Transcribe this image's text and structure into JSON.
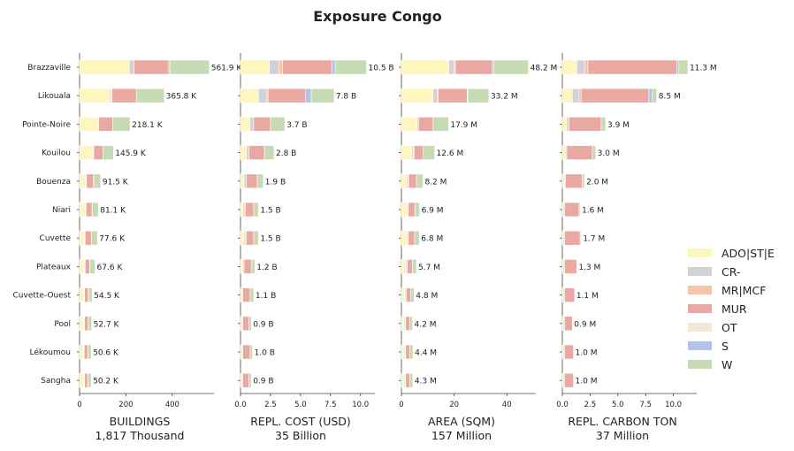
{
  "chart_data": {
    "type": "bar",
    "orientation": "horizontal",
    "stacked": true,
    "title": "Exposure Congo",
    "categories": [
      "Brazzaville",
      "Likouala",
      "Pointe-Noire",
      "Kouilou",
      "Bouenza",
      "Niari",
      "Cuvette",
      "Plateaux",
      "Cuvette-Ouest",
      "Pool",
      "Lékoumou",
      "Sangha"
    ],
    "legend": {
      "position": "right",
      "entries": [
        {
          "name": "ADO|ST|E",
          "color": "#fff5bf"
        },
        {
          "name": "CR-",
          "color": "#cfd2d6"
        },
        {
          "name": "MR|MCF",
          "color": "#f6c4a6"
        },
        {
          "name": "MUR",
          "color": "#e9a8a2"
        },
        {
          "name": "OT",
          "color": "#f3e8da"
        },
        {
          "name": "S",
          "color": "#b2c3e4"
        },
        {
          "name": "W",
          "color": "#c6dbb4"
        }
      ]
    },
    "panels": [
      {
        "xlabel": "BUILDINGS",
        "total_label": "1,817 Thousand",
        "xlim": [
          0,
          580
        ],
        "ticks": [
          0,
          200,
          400
        ],
        "tick_labels": [
          "0",
          "200",
          "400"
        ],
        "totals": [
          "561.9 K",
          "365.8 K",
          "218.1 K",
          "145.9 K",
          "91.5 K",
          "81.1 K",
          "77.6 K",
          "67.6 K",
          "54.5 K",
          "52.7 K",
          "50.6 K",
          "50.2 K"
        ],
        "values": [
          [
            215,
            20,
            0,
            150,
            0,
            5,
            170
          ],
          [
            130,
            5,
            5,
            105,
            0,
            0,
            120
          ],
          [
            80,
            3,
            0,
            60,
            0,
            0,
            75
          ],
          [
            55,
            3,
            3,
            40,
            0,
            0,
            45
          ],
          [
            25,
            3,
            2,
            30,
            0,
            1,
            30
          ],
          [
            25,
            2,
            1,
            26,
            0,
            1,
            26
          ],
          [
            20,
            2,
            2,
            27,
            0,
            1,
            25
          ],
          [
            20,
            2,
            2,
            20,
            0,
            1,
            22
          ],
          [
            18,
            2,
            2,
            16,
            0,
            1,
            15
          ],
          [
            17,
            2,
            3,
            15,
            0,
            1,
            14
          ],
          [
            16,
            2,
            2,
            15,
            0,
            1,
            14
          ],
          [
            18,
            2,
            2,
            13,
            0,
            1,
            14
          ]
        ]
      },
      {
        "xlabel": "REPL. COST (USD)",
        "total_label": "35 Billion",
        "xlim": [
          0,
          11.2
        ],
        "ticks": [
          0,
          2.5,
          5,
          7.5,
          10
        ],
        "tick_labels": [
          "0.0",
          "2.5",
          "5.0",
          "7.5",
          "10.0"
        ],
        "totals": [
          "10.5 B",
          "7.8 B",
          "3.7 B",
          "2.8 B",
          "1.9 B",
          "1.5 B",
          "1.5 B",
          "1.2 B",
          "1.1 B",
          "0.9 B",
          "1.0 B",
          "0.9 B"
        ],
        "values": [
          [
            2.4,
            0.8,
            0.3,
            4.1,
            0,
            0.3,
            2.6
          ],
          [
            1.5,
            0.7,
            0.1,
            3.1,
            0,
            0.5,
            1.9
          ],
          [
            0.8,
            0.3,
            0,
            1.4,
            0,
            0,
            1.2
          ],
          [
            0.5,
            0.2,
            0,
            1.3,
            0,
            0,
            0.8
          ],
          [
            0.3,
            0.2,
            0,
            0.9,
            0,
            0,
            0.5
          ],
          [
            0.2,
            0.1,
            0.1,
            0.7,
            0,
            0,
            0.4
          ],
          [
            0.3,
            0.1,
            0.1,
            0.6,
            0,
            0,
            0.4
          ],
          [
            0.2,
            0.1,
            0,
            0.6,
            0,
            0,
            0.3
          ],
          [
            0.1,
            0.1,
            0,
            0.6,
            0,
            0,
            0.3
          ],
          [
            0.1,
            0.1,
            0,
            0.5,
            0,
            0,
            0.2
          ],
          [
            0.1,
            0.1,
            0,
            0.6,
            0,
            0,
            0.2
          ],
          [
            0.1,
            0.1,
            0,
            0.5,
            0,
            0,
            0.2
          ]
        ]
      },
      {
        "xlabel": "AREA (SQM)",
        "total_label": "157 Million",
        "xlim": [
          0,
          51
        ],
        "ticks": [
          0,
          20,
          40
        ],
        "tick_labels": [
          "0",
          "20",
          "40"
        ],
        "totals": [
          "48.2 M",
          "33.2 M",
          "17.9 M",
          "12.6 M",
          "8.2 M",
          "6.9 M",
          "6.8 M",
          "5.7 M",
          "4.8 M",
          "4.2 M",
          "4.4 M",
          "4.3 M"
        ],
        "values": [
          [
            18,
            2,
            0.5,
            14,
            0,
            0.5,
            13.2
          ],
          [
            12,
            1.5,
            0.5,
            11,
            0,
            0.2,
            8
          ],
          [
            6,
            0.5,
            0,
            5.5,
            0,
            0,
            5.9
          ],
          [
            4,
            0.5,
            0.3,
            3.5,
            0,
            0,
            4.3
          ],
          [
            2,
            0.5,
            0.2,
            3,
            0,
            0,
            2.5
          ],
          [
            2,
            0.4,
            0.2,
            2.5,
            0,
            0,
            1.8
          ],
          [
            2,
            0.4,
            0.2,
            2.4,
            0,
            0,
            1.8
          ],
          [
            1.5,
            0.5,
            0.2,
            2,
            0,
            0,
            1.5
          ],
          [
            1.2,
            0.4,
            0.2,
            1.8,
            0,
            0,
            1.2
          ],
          [
            1,
            0.4,
            0.2,
            1.5,
            0,
            0,
            1.1
          ],
          [
            1,
            0.4,
            0.2,
            1.6,
            0,
            0,
            1.2
          ],
          [
            1,
            0.4,
            0.2,
            1.6,
            0,
            0,
            1.1
          ]
        ]
      },
      {
        "xlabel": "REPL. CARBON TON",
        "total_label": "37 Million",
        "xlim": [
          0,
          12.1
        ],
        "ticks": [
          0,
          2.5,
          5,
          7.5,
          10
        ],
        "tick_labels": [
          "0.0",
          "2.5",
          "5.0",
          "7.5",
          "10.0"
        ],
        "totals": [
          "11.3 M",
          "8.5 M",
          "3.9 M",
          "3.0 M",
          "2.0 M",
          "1.6 M",
          "1.7 M",
          "1.3 M",
          "1.1 M",
          "0.9 M",
          "1.0 M",
          "1.0 M"
        ],
        "values": [
          [
            1.3,
            0.7,
            0.3,
            8,
            0,
            0.2,
            0.8
          ],
          [
            0.9,
            0.6,
            0.2,
            6.1,
            0,
            0.3,
            0.4
          ],
          [
            0.4,
            0.2,
            0,
            2.9,
            0,
            0,
            0.4
          ],
          [
            0.3,
            0.1,
            0,
            2.3,
            0,
            0,
            0.3
          ],
          [
            0.2,
            0.1,
            0,
            1.5,
            0,
            0,
            0.2
          ],
          [
            0.1,
            0.1,
            0,
            1.3,
            0,
            0,
            0.1
          ],
          [
            0.1,
            0.1,
            0,
            1.4,
            0,
            0,
            0.1
          ],
          [
            0.1,
            0.1,
            0,
            1.1,
            0,
            0,
            0
          ],
          [
            0.1,
            0.1,
            0,
            0.9,
            0,
            0,
            0
          ],
          [
            0.1,
            0.1,
            0,
            0.7,
            0,
            0,
            0
          ],
          [
            0.1,
            0.1,
            0,
            0.8,
            0,
            0,
            0
          ],
          [
            0.1,
            0.1,
            0,
            0.8,
            0,
            0,
            0
          ]
        ]
      }
    ]
  }
}
